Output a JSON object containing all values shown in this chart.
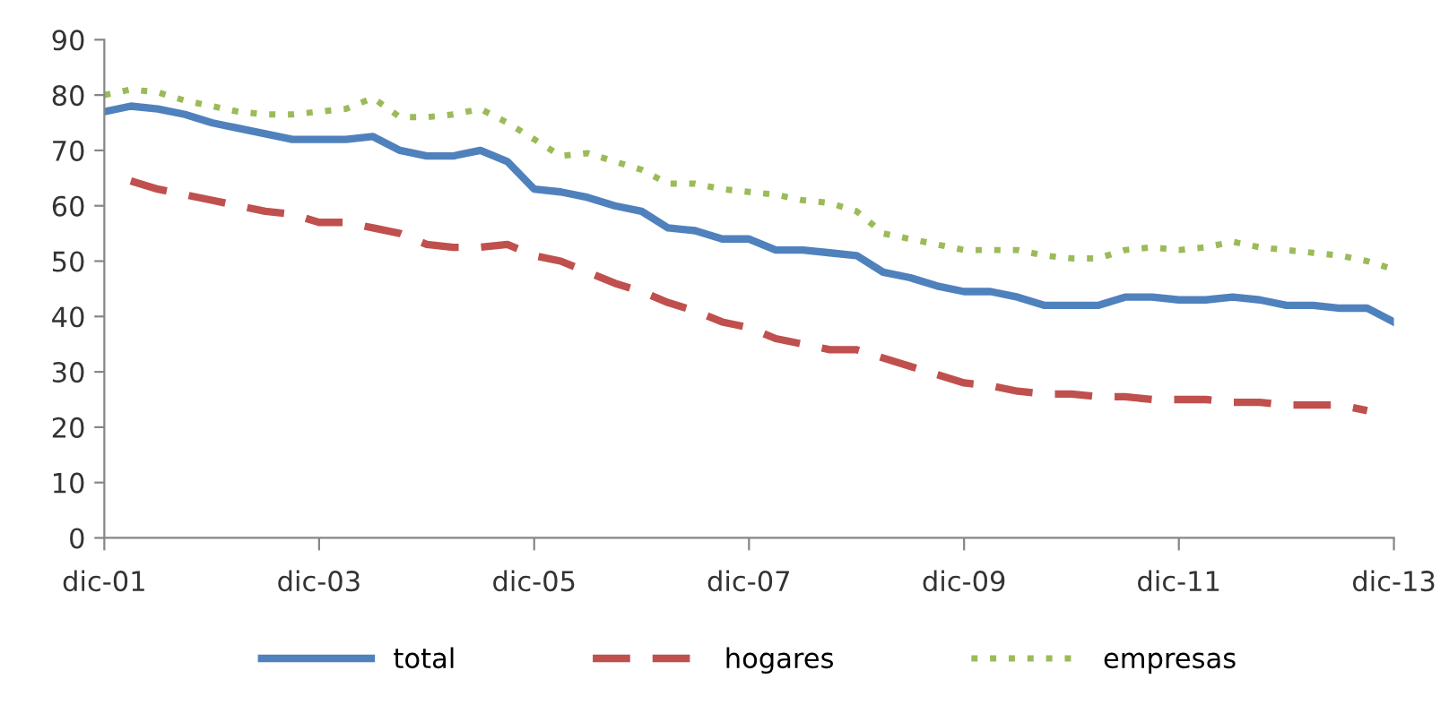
{
  "chart_data": {
    "type": "line",
    "x": [
      "2001-12",
      "2002-03",
      "2002-06",
      "2002-09",
      "2002-12",
      "2003-03",
      "2003-06",
      "2003-09",
      "2003-12",
      "2004-03",
      "2004-06",
      "2004-09",
      "2004-12",
      "2005-03",
      "2005-06",
      "2005-09",
      "2005-12",
      "2006-03",
      "2006-06",
      "2006-09",
      "2006-12",
      "2007-03",
      "2007-06",
      "2007-09",
      "2007-12",
      "2008-03",
      "2008-06",
      "2008-09",
      "2008-12",
      "2009-03",
      "2009-06",
      "2009-09",
      "2009-12",
      "2010-03",
      "2010-06",
      "2010-09",
      "2010-12",
      "2011-03",
      "2011-06",
      "2011-09",
      "2011-12",
      "2012-03",
      "2012-06",
      "2012-09",
      "2012-12",
      "2013-03",
      "2013-06",
      "2013-09",
      "2013-12"
    ],
    "series": [
      {
        "name": "total",
        "color": "#4f81bd",
        "line_style": "solid",
        "values": [
          77,
          78,
          77.5,
          76.5,
          75,
          74,
          73,
          72,
          72,
          72,
          72.5,
          70,
          69,
          69,
          70,
          68,
          63,
          62.5,
          61.5,
          60,
          59,
          56,
          55.5,
          54,
          54,
          52,
          52,
          51.5,
          51,
          48,
          47,
          45.5,
          44.5,
          44.5,
          43.5,
          42,
          42,
          42,
          43.5,
          43.5,
          43,
          43,
          43.5,
          43,
          42,
          42,
          41.5,
          41.5,
          39
        ]
      },
      {
        "name": "hogares",
        "color": "#c0504d",
        "line_style": "dashed",
        "values": [
          null,
          64.5,
          63,
          62,
          61,
          60,
          59,
          58.5,
          57,
          57,
          56,
          55,
          53,
          52.5,
          52.5,
          53,
          51,
          50,
          48,
          46,
          44.5,
          42.5,
          41,
          39,
          38,
          36,
          35,
          34,
          34,
          32.5,
          31,
          29.5,
          28,
          27.5,
          26.5,
          26,
          26,
          25.5,
          25.5,
          25,
          25,
          25,
          24.5,
          24.5,
          24,
          24,
          24,
          23,
          null
        ]
      },
      {
        "name": "empresas",
        "color": "#9bbb59",
        "line_style": "dotted",
        "values": [
          80,
          81,
          80.5,
          79,
          78,
          77,
          76.5,
          76.5,
          77,
          77.5,
          79.5,
          76,
          76,
          76.5,
          77.5,
          75,
          72,
          69,
          69.5,
          68,
          66.5,
          64,
          64,
          63,
          62.5,
          62,
          61,
          60.5,
          59,
          55,
          54,
          53,
          52,
          52,
          52,
          51,
          50.5,
          50.5,
          52,
          52.5,
          52,
          52.5,
          53.5,
          52.5,
          52,
          51.5,
          51,
          50,
          48.5
        ]
      }
    ],
    "xlim": [
      "2001-12",
      "2013-12"
    ],
    "xticks": [
      {
        "value": "2001-12",
        "label": "dic-01"
      },
      {
        "value": "2003-12",
        "label": "dic-03"
      },
      {
        "value": "2005-12",
        "label": "dic-05"
      },
      {
        "value": "2007-12",
        "label": "dic-07"
      },
      {
        "value": "2009-12",
        "label": "dic-09"
      },
      {
        "value": "2011-12",
        "label": "dic-11"
      },
      {
        "value": "2013-12",
        "label": "dic-13"
      }
    ],
    "ylim": [
      0,
      90
    ],
    "yticks": [
      0,
      10,
      20,
      30,
      40,
      50,
      60,
      70,
      80,
      90
    ],
    "grid": false,
    "legend": "bottom"
  }
}
